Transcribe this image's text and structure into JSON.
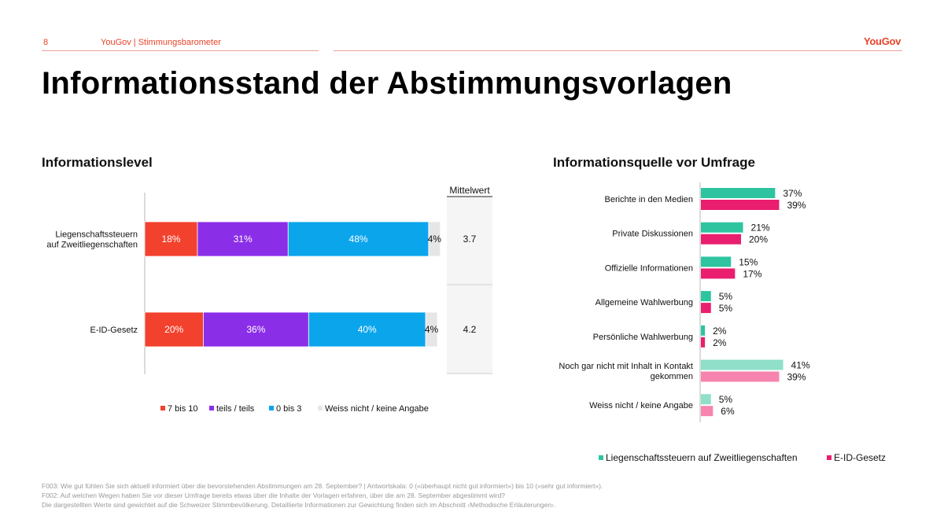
{
  "header": {
    "page_number": "8",
    "subtitle": "YouGov | Stimmungsbarometer",
    "logo": "YouGov",
    "accent_color": "#e8432a"
  },
  "title": "Informationsstand der Abstimmungsvorlagen",
  "left": {
    "title": "Informationslevel",
    "mean_header": "Mittelwert"
  },
  "right": {
    "title": "Informationsquelle vor Umfrage"
  },
  "chart_data": [
    {
      "type": "bar",
      "orientation": "horizontal",
      "stacked": true,
      "percent": true,
      "categories": [
        [
          "Liegenschaftssteuern",
          "auf Zweitliegenschaften"
        ],
        [
          "E-ID-Gesetz"
        ]
      ],
      "series": [
        {
          "name": "7 bis 10",
          "color": "#f2412d",
          "values": [
            18,
            20
          ],
          "labels": [
            "18%",
            "20%"
          ]
        },
        {
          "name": "teils / teils",
          "color": "#8b2ee8",
          "values": [
            31,
            36
          ],
          "labels": [
            "31%",
            "36%"
          ]
        },
        {
          "name": "0 bis 3",
          "color": "#0ba5ec",
          "values": [
            48,
            40
          ],
          "labels": [
            "48%",
            "40%"
          ]
        },
        {
          "name": "Weiss nicht / keine Angabe",
          "color": "#e6e6e6",
          "values": [
            4,
            4
          ],
          "labels": [
            "4%",
            "4%"
          ]
        }
      ],
      "mean": {
        "header": "Mittelwert",
        "values": [
          "3.7",
          "4.2"
        ]
      },
      "legend": "bottom",
      "grid": false
    },
    {
      "type": "bar",
      "orientation": "horizontal",
      "percent": true,
      "categories": [
        [
          "Berichte in den Medien"
        ],
        [
          "Private Diskussionen"
        ],
        [
          "Offizielle Informationen"
        ],
        [
          "Allgemeine Wahlwerbung"
        ],
        [
          "Persönliche Wahlwerbung"
        ],
        [
          "Noch gar nicht mit Inhalt in Kontakt",
          "gekommen"
        ],
        [
          "Weiss nicht / keine Angabe"
        ]
      ],
      "series": [
        {
          "name": "Liegenschaftssteuern auf Zweitliegenschaften",
          "color": "#2ec4a0",
          "color_light": "#8fdfc9",
          "values": [
            37,
            21,
            15,
            5,
            2,
            41,
            5
          ],
          "labels": [
            "37%",
            "21%",
            "15%",
            "5%",
            "2%",
            "41%",
            "5%"
          ]
        },
        {
          "name": "E-ID-Gesetz",
          "color": "#ea1e6e",
          "color_light": "#f784ae",
          "values": [
            39,
            20,
            17,
            5,
            2,
            39,
            6
          ],
          "labels": [
            "39%",
            "20%",
            "17%",
            "5%",
            "2%",
            "39%",
            "6%"
          ]
        }
      ],
      "legend": "bottom",
      "grid": false
    }
  ],
  "footnotes": [
    "F003: Wie gut fühlen Sie sich aktuell informiert über die bevorstehenden Abstimmungen am 28. September? | Antwortskala: 0 («überhaupt nicht gut informiert») bis 10 («sehr gut informiert»).",
    "F002: Auf welchen Wegen haben Sie vor dieser Umfrage bereits etwas über die Inhalte der Vorlagen erfahren, über die am 28. September abgestimmt wird?",
    "Die dargestellten Werte sind gewichtet auf die Schweizer Stimmbevölkerung. Detaillierte Informationen zur Gewichtung finden sich im Abschnitt ‹Methodische Erläuterungen›."
  ]
}
